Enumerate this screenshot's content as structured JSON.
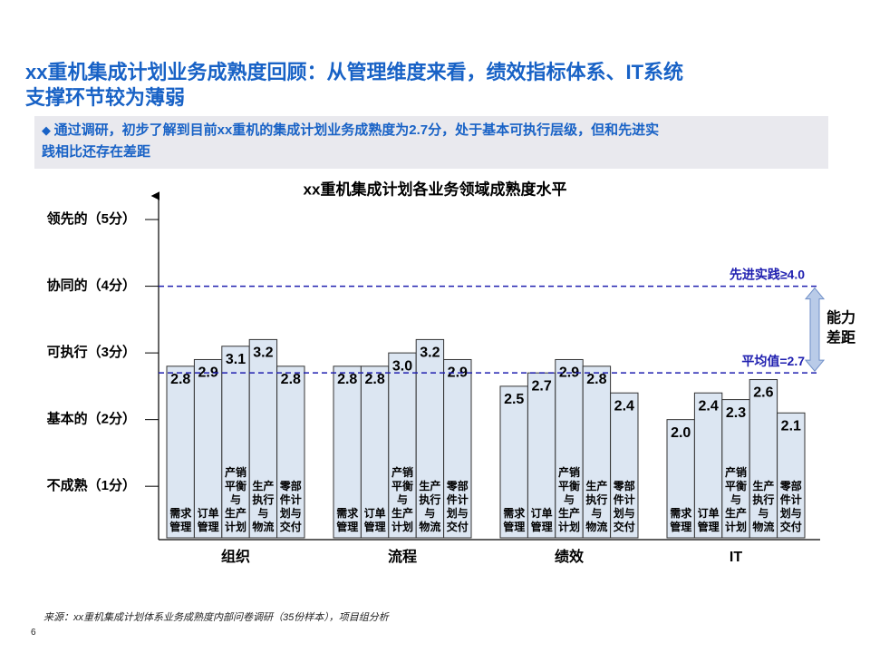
{
  "header": {
    "title_lines": [
      "xx重机集成计划业务成熟度回顾：从管理维度来看，绩效指标体系、IT系统",
      "支撑环节较为薄弱"
    ],
    "summary_lines": [
      "通过调研，初步了解到目前xx重机的集成计划业务成熟度为2.7分，处于基本可执行层级，但和先进实",
      "践相比还存在差距"
    ]
  },
  "chart_data": {
    "type": "grouped-bar",
    "title": "xx重机集成计划各业务领域成熟度水平",
    "ylim": [
      0.2,
      5.3
    ],
    "yticks": [
      {
        "value": 1,
        "label": "不成熟（1分）"
      },
      {
        "value": 2,
        "label": "基本的（2分）"
      },
      {
        "value": 3,
        "label": "可执行（3分）"
      },
      {
        "value": 4,
        "label": "协同的（4分）"
      },
      {
        "value": 5,
        "label": "领先的（5分）"
      }
    ],
    "color": "#dce6f2",
    "groups": [
      {
        "name": "组织",
        "categories": [
          [
            "需求",
            "管理"
          ],
          [
            "订单",
            "管理"
          ],
          [
            "产销",
            "平衡",
            "与",
            "生产",
            "计划"
          ],
          [
            "生产",
            "执行",
            "与",
            "物流"
          ],
          [
            "零部",
            "件计",
            "划与",
            "交付"
          ]
        ],
        "values": [
          2.8,
          2.9,
          3.1,
          3.2,
          2.8
        ]
      },
      {
        "name": "流程",
        "categories": [
          [
            "需求",
            "管理"
          ],
          [
            "订单",
            "管理"
          ],
          [
            "产销",
            "平衡",
            "与",
            "生产",
            "计划"
          ],
          [
            "生产",
            "执行",
            "与",
            "物流"
          ],
          [
            "零部",
            "件计",
            "划与",
            "交付"
          ]
        ],
        "values": [
          2.8,
          2.8,
          3.0,
          3.2,
          2.9
        ],
        "value_labels": [
          "2.8",
          "2.8",
          "3.0",
          "3.2",
          "2.9"
        ]
      },
      {
        "name": "绩效",
        "categories": [
          [
            "需求",
            "管理"
          ],
          [
            "订单",
            "管理"
          ],
          [
            "产销",
            "平衡",
            "与",
            "生产",
            "计划"
          ],
          [
            "生产",
            "执行",
            "与",
            "物流"
          ],
          [
            "零部",
            "件计",
            "划与",
            "交付"
          ]
        ],
        "values": [
          2.5,
          2.7,
          2.9,
          2.8,
          2.4
        ]
      },
      {
        "name": "IT",
        "categories": [
          [
            "需求",
            "管理"
          ],
          [
            "订单",
            "管理"
          ],
          [
            "产销",
            "平衡",
            "与",
            "生产",
            "计划"
          ],
          [
            "生产",
            "执行",
            "与",
            "物流"
          ],
          [
            "零部",
            "件计",
            "划与",
            "交付"
          ]
        ],
        "values": [
          2.0,
          2.4,
          2.3,
          2.6,
          2.1
        ],
        "value_labels": [
          "2.0",
          "2.4",
          "2.3",
          "2.6",
          "2.1"
        ]
      }
    ],
    "reference_lines": [
      {
        "label": "先进实践≥4.0",
        "value": 4.0,
        "color": "#2020b0"
      },
      {
        "label": "平均值=2.7",
        "value": 2.7,
        "color": "#2020b0"
      }
    ],
    "gap_annotation": [
      "能力",
      "差距"
    ]
  },
  "footer": {
    "source": "来源：xx重机集成计划体系业务成熟度内部问卷调研（35份样本），项目组分析",
    "page": "6"
  }
}
